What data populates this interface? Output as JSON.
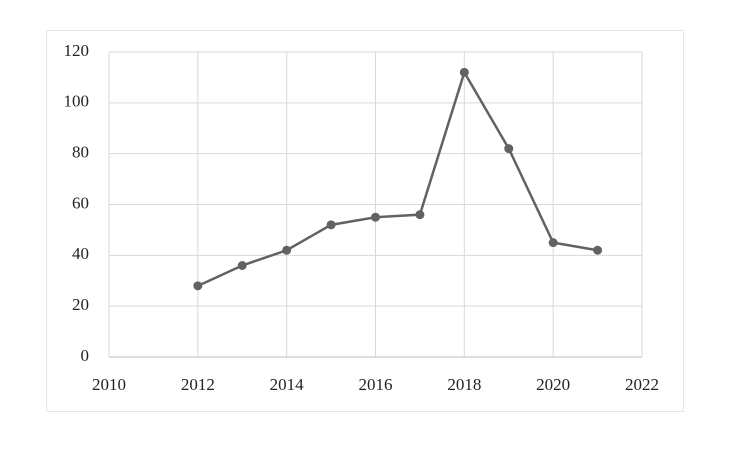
{
  "chart_data": {
    "type": "line",
    "x": [
      2012,
      2013,
      2014,
      2015,
      2016,
      2017,
      2018,
      2019,
      2020,
      2021
    ],
    "series": [
      {
        "color": "#626262",
        "values": [
          28,
          36,
          42,
          52,
          55,
          56,
          112,
          82,
          45,
          42
        ]
      }
    ],
    "xlim": [
      2010,
      2022
    ],
    "xticks": [
      2010,
      2012,
      2014,
      2016,
      2018,
      2020,
      2022
    ],
    "ylim": [
      0,
      120
    ],
    "yticks": [
      0,
      20,
      40,
      60,
      80,
      100,
      120
    ],
    "grid": true
  }
}
